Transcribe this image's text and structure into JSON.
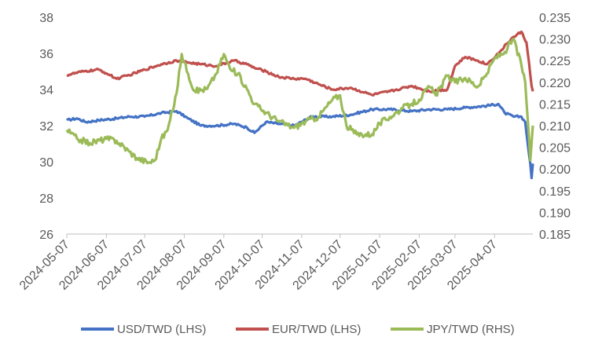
{
  "chart_data": {
    "type": "line",
    "x_tick_labels": [
      "2024-05-07",
      "2024-06-07",
      "2024-07-07",
      "2024-08-07",
      "2024-09-07",
      "2024-10-07",
      "2024-11-07",
      "2024-12-07",
      "2025-01-07",
      "2025-02-07",
      "2025-03-07",
      "2025-04-07"
    ],
    "x_range": [
      "2024-05-07",
      "2025-05-07"
    ],
    "y_left": {
      "range": [
        26,
        38
      ],
      "ticks": [
        "26",
        "28",
        "30",
        "32",
        "34",
        "36",
        "38"
      ]
    },
    "y_right": {
      "range": [
        0.185,
        0.235
      ],
      "ticks": [
        "0.185",
        "0.190",
        "0.195",
        "0.200",
        "0.205",
        "0.210",
        "0.215",
        "0.220",
        "0.225",
        "0.230",
        "0.235"
      ]
    },
    "grid": false,
    "legend_position": "bottom",
    "series": [
      {
        "name": "USD/TWD (LHS)",
        "axis": "left",
        "color": "#4472C4",
        "points": [
          [
            "2024-05-07",
            32.3
          ],
          [
            "2024-05-15",
            32.4
          ],
          [
            "2024-05-22",
            32.2
          ],
          [
            "2024-06-01",
            32.3
          ],
          [
            "2024-06-15",
            32.4
          ],
          [
            "2024-06-25",
            32.5
          ],
          [
            "2024-07-07",
            32.5
          ],
          [
            "2024-07-20",
            32.7
          ],
          [
            "2024-08-01",
            32.8
          ],
          [
            "2024-08-10",
            32.4
          ],
          [
            "2024-08-20",
            32.0
          ],
          [
            "2024-09-01",
            32.0
          ],
          [
            "2024-09-15",
            32.1
          ],
          [
            "2024-09-25",
            31.9
          ],
          [
            "2024-10-01",
            31.6
          ],
          [
            "2024-10-10",
            32.2
          ],
          [
            "2024-10-20",
            32.1
          ],
          [
            "2024-11-01",
            32.0
          ],
          [
            "2024-11-15",
            32.5
          ],
          [
            "2024-12-01",
            32.5
          ],
          [
            "2024-12-15",
            32.6
          ],
          [
            "2025-01-01",
            32.9
          ],
          [
            "2025-01-15",
            32.9
          ],
          [
            "2025-02-01",
            32.8
          ],
          [
            "2025-02-15",
            32.9
          ],
          [
            "2025-03-01",
            32.9
          ],
          [
            "2025-03-15",
            33.0
          ],
          [
            "2025-04-01",
            33.1
          ],
          [
            "2025-04-10",
            33.2
          ],
          [
            "2025-04-15",
            32.7
          ],
          [
            "2025-04-22",
            32.5
          ],
          [
            "2025-04-28",
            32.5
          ],
          [
            "2025-05-01",
            32.2
          ],
          [
            "2025-05-03",
            31.0
          ],
          [
            "2025-05-05",
            29.9
          ],
          [
            "2025-05-06",
            29.1
          ],
          [
            "2025-05-07",
            29.9
          ]
        ]
      },
      {
        "name": "EUR/TWD (LHS)",
        "axis": "left",
        "color": "#C0504D",
        "points": [
          [
            "2024-05-07",
            34.8
          ],
          [
            "2024-05-20",
            35.0
          ],
          [
            "2024-06-01",
            35.1
          ],
          [
            "2024-06-07",
            34.9
          ],
          [
            "2024-06-15",
            34.6
          ],
          [
            "2024-06-25",
            34.8
          ],
          [
            "2024-07-07",
            35.1
          ],
          [
            "2024-07-20",
            35.4
          ],
          [
            "2024-08-01",
            35.6
          ],
          [
            "2024-08-10",
            35.5
          ],
          [
            "2024-08-20",
            35.4
          ],
          [
            "2024-09-01",
            35.3
          ],
          [
            "2024-09-15",
            35.6
          ],
          [
            "2024-09-25",
            35.4
          ],
          [
            "2024-10-01",
            35.2
          ],
          [
            "2024-10-10",
            35.0
          ],
          [
            "2024-10-20",
            34.7
          ],
          [
            "2024-11-01",
            34.6
          ],
          [
            "2024-11-10",
            34.6
          ],
          [
            "2024-11-20",
            34.3
          ],
          [
            "2024-12-01",
            34.0
          ],
          [
            "2024-12-15",
            34.1
          ],
          [
            "2025-01-01",
            33.7
          ],
          [
            "2025-01-15",
            33.9
          ],
          [
            "2025-02-01",
            34.2
          ],
          [
            "2025-02-15",
            33.9
          ],
          [
            "2025-03-01",
            34.0
          ],
          [
            "2025-03-07",
            35.3
          ],
          [
            "2025-03-15",
            35.8
          ],
          [
            "2025-03-25",
            35.6
          ],
          [
            "2025-04-01",
            35.4
          ],
          [
            "2025-04-10",
            36.0
          ],
          [
            "2025-04-20",
            36.8
          ],
          [
            "2025-04-28",
            37.2
          ],
          [
            "2025-05-02",
            36.6
          ],
          [
            "2025-05-04",
            35.5
          ],
          [
            "2025-05-06",
            34.2
          ],
          [
            "2025-05-07",
            33.9
          ]
        ]
      },
      {
        "name": "JPY/TWD (RHS)",
        "axis": "right",
        "color": "#9BBB59",
        "points": [
          [
            "2024-05-07",
            0.209
          ],
          [
            "2024-05-15",
            0.207
          ],
          [
            "2024-05-25",
            0.206
          ],
          [
            "2024-06-07",
            0.207
          ],
          [
            "2024-06-15",
            0.2065
          ],
          [
            "2024-06-25",
            0.204
          ],
          [
            "2024-07-01",
            0.2025
          ],
          [
            "2024-07-10",
            0.2015
          ],
          [
            "2024-07-15",
            0.202
          ],
          [
            "2024-07-20",
            0.207
          ],
          [
            "2024-07-25",
            0.209
          ],
          [
            "2024-08-01",
            0.2175
          ],
          [
            "2024-08-05",
            0.2265
          ],
          [
            "2024-08-10",
            0.222
          ],
          [
            "2024-08-15",
            0.218
          ],
          [
            "2024-08-25",
            0.2185
          ],
          [
            "2024-09-01",
            0.222
          ],
          [
            "2024-09-07",
            0.2265
          ],
          [
            "2024-09-12",
            0.223
          ],
          [
            "2024-09-18",
            0.222
          ],
          [
            "2024-09-25",
            0.2185
          ],
          [
            "2024-10-01",
            0.215
          ],
          [
            "2024-10-10",
            0.213
          ],
          [
            "2024-10-20",
            0.211
          ],
          [
            "2024-11-01",
            0.2095
          ],
          [
            "2024-11-10",
            0.211
          ],
          [
            "2024-11-20",
            0.212
          ],
          [
            "2024-12-01",
            0.216
          ],
          [
            "2024-12-07",
            0.217
          ],
          [
            "2024-12-12",
            0.21
          ],
          [
            "2024-12-20",
            0.208
          ],
          [
            "2025-01-01",
            0.208
          ],
          [
            "2025-01-07",
            0.2105
          ],
          [
            "2025-01-15",
            0.212
          ],
          [
            "2025-01-25",
            0.214
          ],
          [
            "2025-02-01",
            0.215
          ],
          [
            "2025-02-07",
            0.216
          ],
          [
            "2025-02-15",
            0.219
          ],
          [
            "2025-02-20",
            0.217
          ],
          [
            "2025-03-01",
            0.2215
          ],
          [
            "2025-03-07",
            0.22
          ],
          [
            "2025-03-15",
            0.221
          ],
          [
            "2025-03-25",
            0.219
          ],
          [
            "2025-04-01",
            0.222
          ],
          [
            "2025-04-07",
            0.2255
          ],
          [
            "2025-04-15",
            0.227
          ],
          [
            "2025-04-22",
            0.23
          ],
          [
            "2025-04-28",
            0.224
          ],
          [
            "2025-05-01",
            0.22
          ],
          [
            "2025-05-03",
            0.2115
          ],
          [
            "2025-05-05",
            0.202
          ],
          [
            "2025-05-06",
            0.206
          ],
          [
            "2025-05-07",
            0.21
          ]
        ]
      }
    ]
  }
}
